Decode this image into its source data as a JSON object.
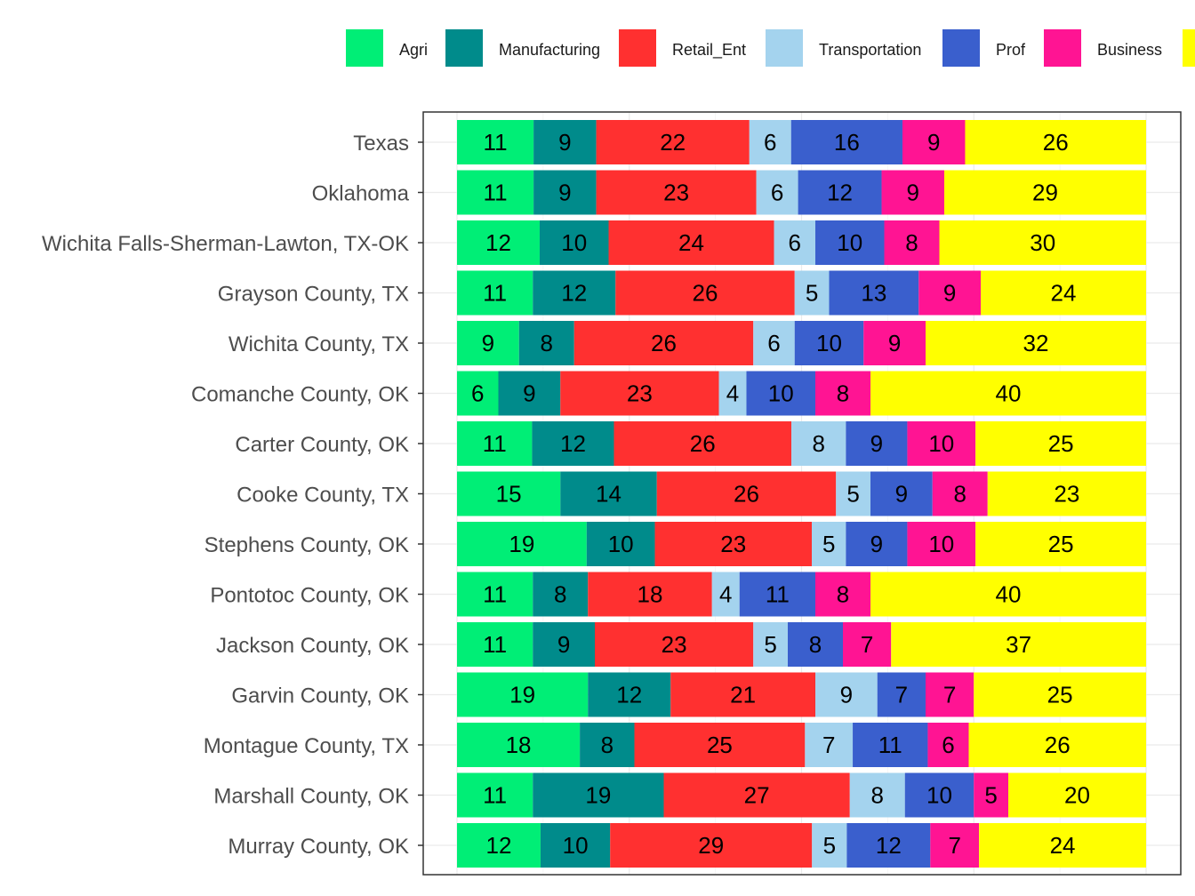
{
  "chart_data": {
    "type": "bar",
    "orientation": "horizontal",
    "stacked": true,
    "title": "",
    "xlabel": "",
    "ylabel": "",
    "xlim": [
      0,
      100
    ],
    "grid": true,
    "legend_position": "top",
    "categories": [
      "Texas",
      "Oklahoma",
      "Wichita Falls-Sherman-Lawton, TX-OK",
      "Grayson County, TX",
      "Wichita County, TX",
      "Comanche County, OK",
      "Carter County, OK",
      "Cooke County, TX",
      "Stephens County, OK",
      "Pontotoc County, OK",
      "Jackson County, OK",
      "Garvin County, OK",
      "Montague County, TX",
      "Marshall County, OK",
      "Murray County, OK"
    ],
    "series": [
      {
        "name": "Agri",
        "color": "#00EE76",
        "values": [
          11,
          11,
          12,
          11,
          9,
          6,
          11,
          15,
          19,
          11,
          11,
          19,
          18,
          11,
          12
        ]
      },
      {
        "name": "Manufacturing",
        "color": "#008B8B",
        "values": [
          9,
          9,
          10,
          12,
          8,
          9,
          12,
          14,
          10,
          8,
          9,
          12,
          8,
          19,
          10
        ]
      },
      {
        "name": "Retail_Ent",
        "color": "#FF3030",
        "values": [
          22,
          23,
          24,
          26,
          26,
          23,
          26,
          26,
          23,
          18,
          23,
          21,
          25,
          27,
          29
        ]
      },
      {
        "name": "Transportation",
        "color": "#A4D3EE",
        "values": [
          6,
          6,
          6,
          5,
          6,
          4,
          8,
          5,
          5,
          4,
          5,
          9,
          7,
          8,
          5
        ]
      },
      {
        "name": "Prof",
        "color": "#3A5FCD",
        "values": [
          16,
          12,
          10,
          13,
          10,
          10,
          9,
          9,
          9,
          11,
          8,
          7,
          11,
          10,
          12
        ]
      },
      {
        "name": "Business",
        "color": "#FF1493",
        "values": [
          9,
          9,
          8,
          9,
          9,
          8,
          10,
          8,
          10,
          8,
          7,
          7,
          6,
          5,
          7
        ]
      },
      {
        "name": "",
        "color": "#FFFF00",
        "values": [
          26,
          29,
          30,
          24,
          32,
          40,
          25,
          23,
          25,
          40,
          37,
          25,
          26,
          20,
          24
        ]
      }
    ]
  }
}
